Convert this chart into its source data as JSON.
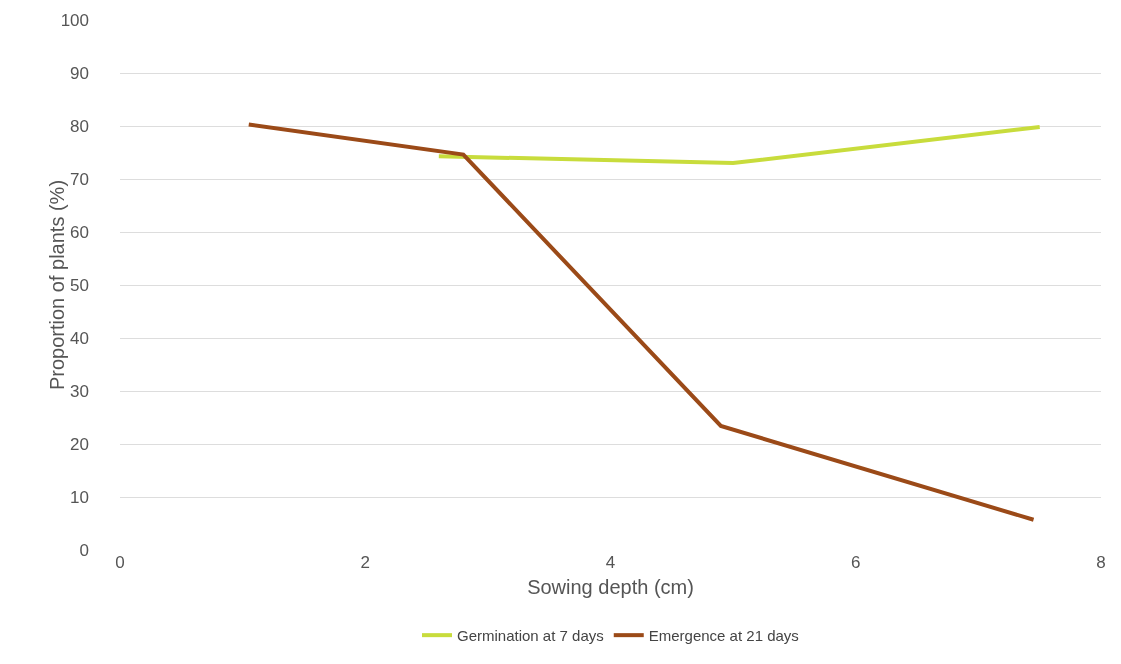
{
  "chart_data": {
    "type": "line",
    "xlabel": "Sowing depth (cm)",
    "ylabel": "Proportion of plants (%)",
    "xlim": [
      0,
      8
    ],
    "xticks": [
      0,
      2,
      4,
      6,
      8
    ],
    "ylim": [
      0,
      100
    ],
    "yticks": [
      0,
      10,
      20,
      30,
      40,
      50,
      60,
      70,
      80,
      90,
      100
    ],
    "series": [
      {
        "name": "Germination at 7 days",
        "color": "#c8dc3c",
        "x": [
          2.6,
          5.0,
          7.5
        ],
        "values": [
          74.3,
          73,
          79.8
        ]
      },
      {
        "name": "Emergence at 21 days",
        "color": "#9b4a18",
        "x": [
          1.05,
          2.8,
          4.9,
          7.45
        ],
        "values": [
          80.3,
          74.6,
          23.4,
          5.7
        ]
      }
    ],
    "grid": "y",
    "legend": "bottom",
    "marker": "none",
    "line_style": "solid"
  }
}
